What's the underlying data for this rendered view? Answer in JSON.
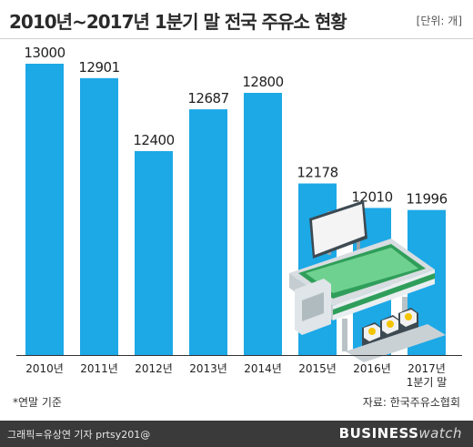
{
  "header": {
    "title": "2010년~2017년 1분기 말 전국 주유소 현황",
    "unit": "[단위: 개]"
  },
  "footer": {
    "note": "*연말 기준",
    "source": "자료: 한국주유소협회",
    "credit": "그래픽=유상연 기자 prtsy201@",
    "brand_main": "BUSINESS",
    "brand_tail": "watch"
  },
  "colors": {
    "bar": "#1da8e6",
    "footer_bg": "#3a3a3a"
  },
  "illustration": "gas-station",
  "chart_data": {
    "type": "bar",
    "title": "2010년~2017년 1분기 말 전국 주유소 현황",
    "xlabel": "",
    "ylabel": "",
    "categories": [
      "2010년",
      "2011년",
      "2012년",
      "2013년",
      "2014년",
      "2015년",
      "2016년",
      "2017년\n1분기 말"
    ],
    "values": [
      13000,
      12901,
      12400,
      12687,
      12800,
      12178,
      12010,
      11996
    ],
    "grid": false,
    "legend": "none"
  }
}
